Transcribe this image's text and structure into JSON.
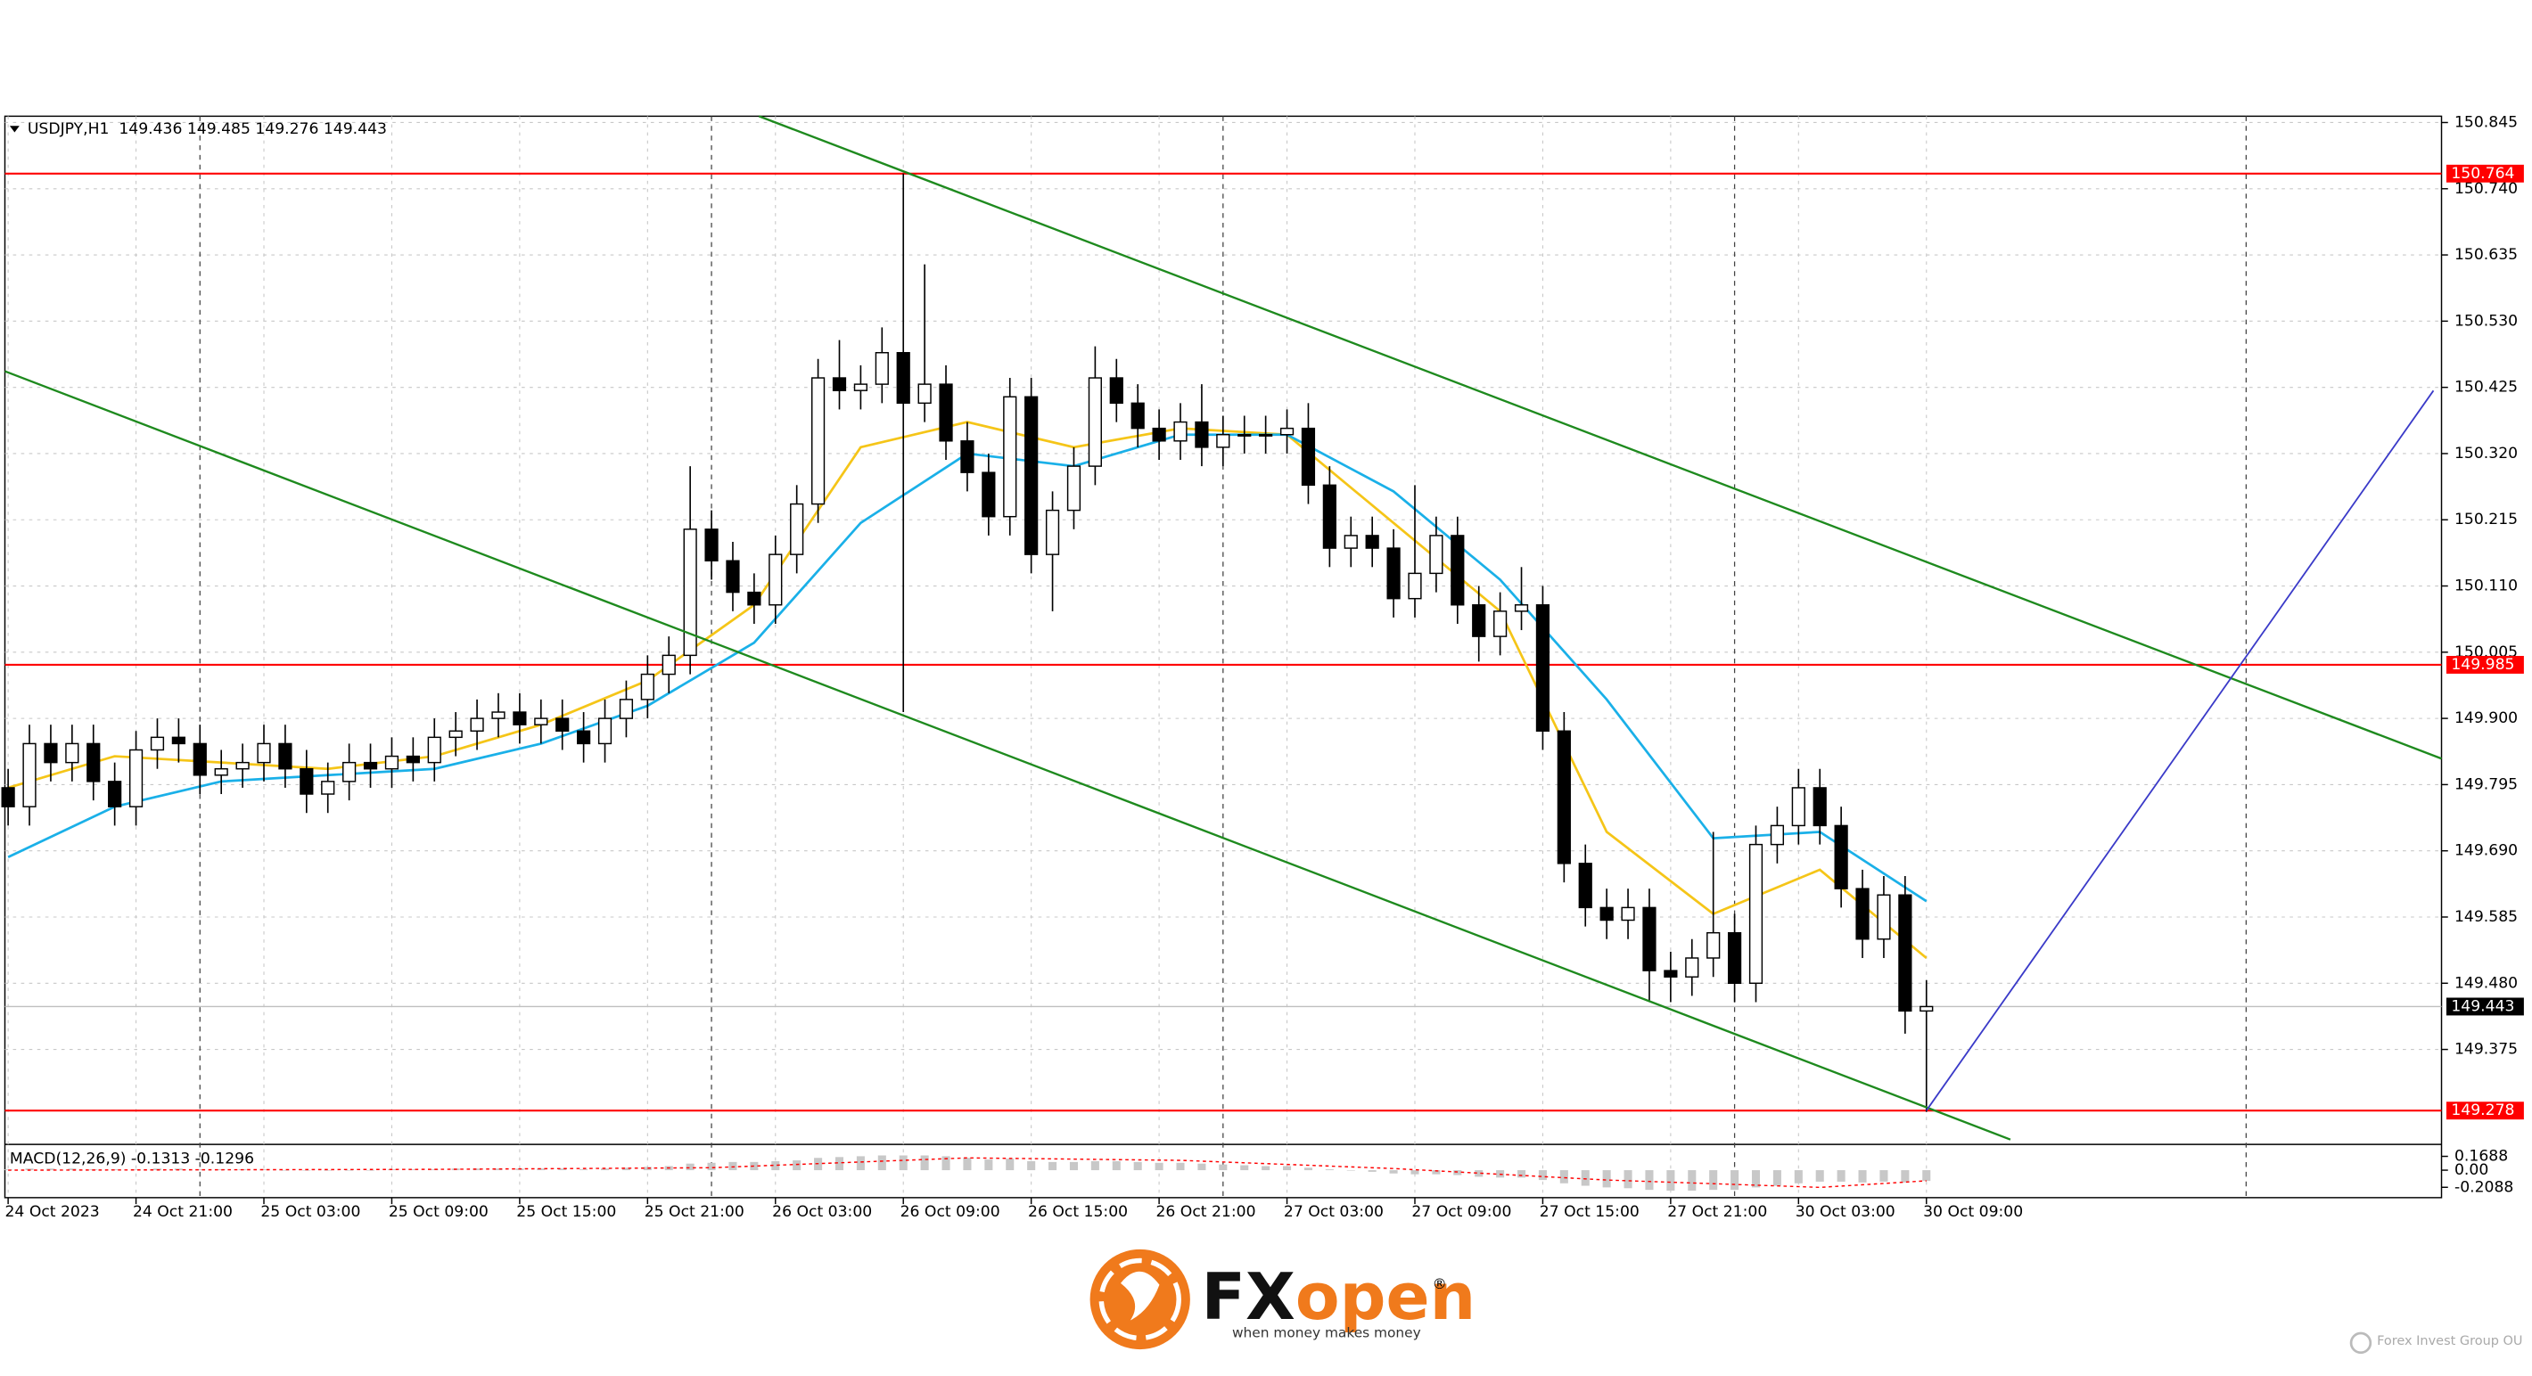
{
  "chart_data": {
    "type": "candlestick",
    "title": "USDJPY,H1",
    "open": [
      149.79,
      149.76,
      149.86,
      149.83,
      149.86,
      149.8,
      149.76,
      149.85,
      149.87,
      149.86,
      149.81,
      149.82,
      149.83,
      149.86,
      149.82,
      149.78,
      149.8,
      149.83,
      149.82,
      149.84,
      149.83,
      149.87,
      149.88,
      149.9,
      149.91,
      149.89,
      149.9,
      149.88,
      149.86,
      149.9,
      149.93,
      149.97,
      150.0,
      150.2,
      150.15,
      150.1,
      150.08,
      150.16,
      150.24,
      150.44,
      150.42,
      150.43,
      150.48,
      150.4,
      150.43,
      150.34,
      150.29,
      150.22,
      150.41,
      150.16,
      150.23,
      150.3,
      150.44,
      150.4,
      150.36,
      150.34,
      150.37,
      150.33,
      150.35,
      150.35,
      150.35,
      150.36,
      150.27,
      150.17,
      150.19,
      150.17,
      150.09,
      150.13,
      150.19,
      150.08,
      150.03,
      150.07,
      150.08,
      149.88,
      149.67,
      149.6,
      149.58,
      149.6,
      149.5,
      149.49,
      149.52,
      149.56,
      149.48,
      149.7,
      149.73,
      149.79,
      149.73,
      149.63,
      149.55,
      149.62,
      149.436
    ],
    "high": [
      149.82,
      149.89,
      149.89,
      149.89,
      149.89,
      149.83,
      149.88,
      149.9,
      149.9,
      149.89,
      149.85,
      149.86,
      149.89,
      149.89,
      149.85,
      149.83,
      149.86,
      149.86,
      149.87,
      149.87,
      149.9,
      149.91,
      149.93,
      149.94,
      149.94,
      149.93,
      149.93,
      149.91,
      149.93,
      149.96,
      150.0,
      150.03,
      150.3,
      150.23,
      150.18,
      150.13,
      150.19,
      150.27,
      150.47,
      150.5,
      150.46,
      150.52,
      150.764,
      150.62,
      150.46,
      150.37,
      150.32,
      150.44,
      150.44,
      150.26,
      150.33,
      150.49,
      150.47,
      150.43,
      150.39,
      150.4,
      150.43,
      150.38,
      150.38,
      150.38,
      150.39,
      150.4,
      150.3,
      150.22,
      150.22,
      150.2,
      150.27,
      150.22,
      150.22,
      150.11,
      150.1,
      150.14,
      150.11,
      149.91,
      149.7,
      149.63,
      149.63,
      149.63,
      149.53,
      149.55,
      149.72,
      149.59,
      149.73,
      149.76,
      149.82,
      149.82,
      149.76,
      149.66,
      149.65,
      149.65,
      149.485
    ],
    "low": [
      149.73,
      149.73,
      149.8,
      149.8,
      149.77,
      149.73,
      149.73,
      149.82,
      149.83,
      149.78,
      149.78,
      149.79,
      149.8,
      149.79,
      149.75,
      149.75,
      149.77,
      149.79,
      149.79,
      149.8,
      149.8,
      149.84,
      149.85,
      149.87,
      149.86,
      149.86,
      149.85,
      149.83,
      149.83,
      149.87,
      149.9,
      149.94,
      149.97,
      150.12,
      150.07,
      150.05,
      150.05,
      150.13,
      150.21,
      150.39,
      150.39,
      150.4,
      149.91,
      150.37,
      150.31,
      150.26,
      150.19,
      150.19,
      150.13,
      150.07,
      150.2,
      150.27,
      150.37,
      150.33,
      150.31,
      150.31,
      150.3,
      150.3,
      150.32,
      150.32,
      150.32,
      150.24,
      150.14,
      150.14,
      150.14,
      150.06,
      150.06,
      150.1,
      150.05,
      149.99,
      150.0,
      150.04,
      149.85,
      149.64,
      149.57,
      149.55,
      149.55,
      149.45,
      149.45,
      149.46,
      149.49,
      149.45,
      149.45,
      149.67,
      149.7,
      149.7,
      149.6,
      149.52,
      149.52,
      149.4,
      149.276
    ],
    "close": [
      149.76,
      149.86,
      149.83,
      149.86,
      149.8,
      149.76,
      149.85,
      149.87,
      149.86,
      149.81,
      149.82,
      149.83,
      149.86,
      149.82,
      149.78,
      149.8,
      149.83,
      149.82,
      149.84,
      149.83,
      149.87,
      149.88,
      149.9,
      149.91,
      149.89,
      149.9,
      149.88,
      149.86,
      149.9,
      149.93,
      149.97,
      150.0,
      150.2,
      150.15,
      150.1,
      150.08,
      150.16,
      150.24,
      150.44,
      150.42,
      150.43,
      150.48,
      150.4,
      150.43,
      150.34,
      150.29,
      150.22,
      150.41,
      150.16,
      150.23,
      150.3,
      150.44,
      150.4,
      150.36,
      150.34,
      150.37,
      150.33,
      150.35,
      150.35,
      150.35,
      150.36,
      150.27,
      150.17,
      150.19,
      150.17,
      150.09,
      150.13,
      150.19,
      150.08,
      150.03,
      150.07,
      150.08,
      149.88,
      149.67,
      149.6,
      149.58,
      149.6,
      149.5,
      149.49,
      149.52,
      149.56,
      149.48,
      149.7,
      149.73,
      149.79,
      149.73,
      149.63,
      149.55,
      149.62,
      149.436,
      149.443
    ],
    "up_color": "#ffffff",
    "down_color": "#000000",
    "ylim": [
      149.227,
      150.855
    ],
    "yticks": [
      150.845,
      {
        "value": 150.74,
        "label": "150.740"
      },
      150.635,
      {
        "value": 150.53,
        "label": "150.530"
      },
      150.425,
      {
        "value": 150.32,
        "label": "150.320"
      },
      150.215,
      {
        "value": 150.11,
        "label": "150.110"
      },
      150.005,
      {
        "value": 149.9,
        "label": "149.900"
      },
      149.795,
      {
        "value": 149.69,
        "label": "149.690"
      },
      149.585,
      {
        "value": 149.48,
        "label": "149.480"
      },
      149.375
    ],
    "xticks": [
      {
        "value": 0,
        "label": "24 Oct 2023"
      },
      {
        "value": 6,
        "label": "24 Oct 21:00"
      },
      {
        "value": 12,
        "label": "25 Oct 03:00"
      },
      {
        "value": 18,
        "label": "25 Oct 09:00"
      },
      {
        "value": 24,
        "label": "25 Oct 15:00"
      },
      {
        "value": 30,
        "label": "25 Oct 21:00"
      },
      {
        "value": 36,
        "label": "26 Oct 03:00"
      },
      {
        "value": 42,
        "label": "26 Oct 09:00"
      },
      {
        "value": 48,
        "label": "26 Oct 15:00"
      },
      {
        "value": 54,
        "label": "26 Oct 21:00"
      },
      {
        "value": 60,
        "label": "27 Oct 03:00"
      },
      {
        "value": 66,
        "label": "27 Oct 09:00"
      },
      {
        "value": 72,
        "label": "27 Oct 15:00"
      },
      {
        "value": 78,
        "label": "27 Oct 21:00"
      },
      {
        "value": 84,
        "label": "30 Oct 03:00"
      },
      {
        "value": 90,
        "label": "30 Oct 09:00"
      }
    ],
    "grid": true,
    "lines": [
      {
        "color": "#f5c518",
        "x": [
          0,
          5,
          10,
          15,
          20,
          25,
          30,
          35,
          40,
          45,
          50,
          55,
          60,
          65,
          70,
          75,
          80,
          85,
          90
        ],
        "values": [
          149.79,
          149.84,
          149.83,
          149.82,
          149.84,
          149.89,
          149.96,
          150.08,
          150.33,
          150.37,
          150.33,
          150.36,
          150.35,
          150.21,
          150.07,
          149.72,
          149.59,
          149.66,
          149.52
        ]
      },
      {
        "color": "#1ab0e8",
        "x": [
          0,
          5,
          10,
          15,
          20,
          25,
          30,
          35,
          40,
          45,
          50,
          55,
          60,
          65,
          70,
          75,
          80,
          85,
          90
        ],
        "values": [
          149.68,
          149.76,
          149.8,
          149.81,
          149.82,
          149.86,
          149.92,
          150.02,
          150.21,
          150.32,
          150.3,
          150.35,
          150.35,
          150.26,
          150.12,
          149.93,
          149.71,
          149.72,
          149.61
        ]
      }
    ],
    "levels": [
      {
        "value": 150.764,
        "color": "#ff0000"
      },
      {
        "value": 149.985,
        "color": "#ff0000"
      },
      {
        "value": 149.278,
        "color": "#ff0000"
      }
    ],
    "macd": {
      "title": "MACD(12,26,9)",
      "color": "#c8c8c8",
      "signal_color": "#ff0000",
      "values": [
        0.01,
        0.02,
        0.02,
        0.02,
        0.01,
        0.01,
        0.01,
        0.02,
        0.02,
        0.01,
        0.01,
        0.01,
        0.01,
        0,
        0,
        0,
        0,
        0,
        0.01,
        0.01,
        0.01,
        0.02,
        0.02,
        0.02,
        0.02,
        0.02,
        0.02,
        0.01,
        0.02,
        0.03,
        0.04,
        0.05,
        0.08,
        0.09,
        0.1,
        0.1,
        0.11,
        0.12,
        0.15,
        0.16,
        0.17,
        0.18,
        0.18,
        0.18,
        0.17,
        0.15,
        0.13,
        0.14,
        0.11,
        0.1,
        0.1,
        0.11,
        0.11,
        0.1,
        0.09,
        0.09,
        0.08,
        0.07,
        0.06,
        0.05,
        0.05,
        0.03,
        0.01,
        0,
        -0.02,
        -0.04,
        -0.05,
        -0.05,
        -0.06,
        -0.08,
        -0.09,
        -0.09,
        -0.12,
        -0.16,
        -0.19,
        -0.21,
        -0.22,
        -0.24,
        -0.25,
        -0.25,
        -0.24,
        -0.24,
        -0.21,
        -0.19,
        -0.16,
        -0.14,
        -0.14,
        -0.15,
        -0.14,
        -0.15,
        -0.1313
      ],
      "signal": {
        "x": [
          0,
          20,
          33,
          45,
          55,
          65,
          75,
          85,
          90
        ],
        "values": [
          0,
          0.01,
          0.03,
          0.15,
          0.12,
          0.02,
          -0.12,
          -0.21,
          -0.1296
        ]
      },
      "ylim": [
        -0.335,
        0.295
      ],
      "yticks": [
        0.1688,
        {
          "value": 0,
          "label": "0.00"
        },
        -0.2088
      ]
    }
  },
  "branding": {
    "fx": "FX",
    "open": "open",
    "registered": "®",
    "tagline": "when money makes money",
    "company": "Forex Invest Group OU"
  }
}
